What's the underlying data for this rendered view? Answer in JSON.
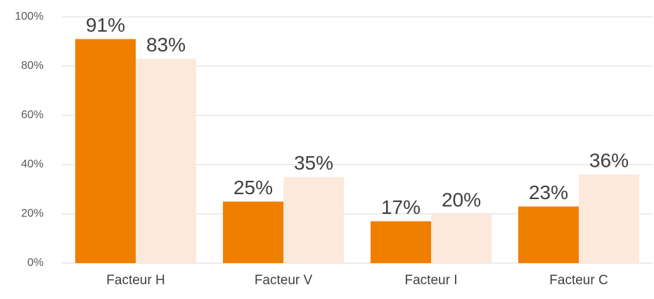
{
  "chart_data": {
    "type": "bar",
    "categories": [
      "Facteur H",
      "Facteur V",
      "Facteur I",
      "Facteur C"
    ],
    "series": [
      {
        "color": "#f07f00",
        "values": [
          91,
          25,
          17,
          23
        ],
        "value_labels": [
          "91%",
          "25%",
          "17%",
          "23%"
        ]
      },
      {
        "color": "#fde9dc",
        "values": [
          83,
          35,
          20,
          36
        ],
        "value_labels": [
          "83%",
          "35%",
          "20%",
          "36%"
        ]
      }
    ],
    "ylim": [
      0,
      100
    ],
    "yticks": [
      {
        "value": 0,
        "label": "0%"
      },
      {
        "value": 20,
        "label": "20%"
      },
      {
        "value": 40,
        "label": "40%"
      },
      {
        "value": 60,
        "label": "60%"
      },
      {
        "value": 80,
        "label": "80%"
      },
      {
        "value": 100,
        "label": "100%"
      }
    ],
    "grid": true
  }
}
